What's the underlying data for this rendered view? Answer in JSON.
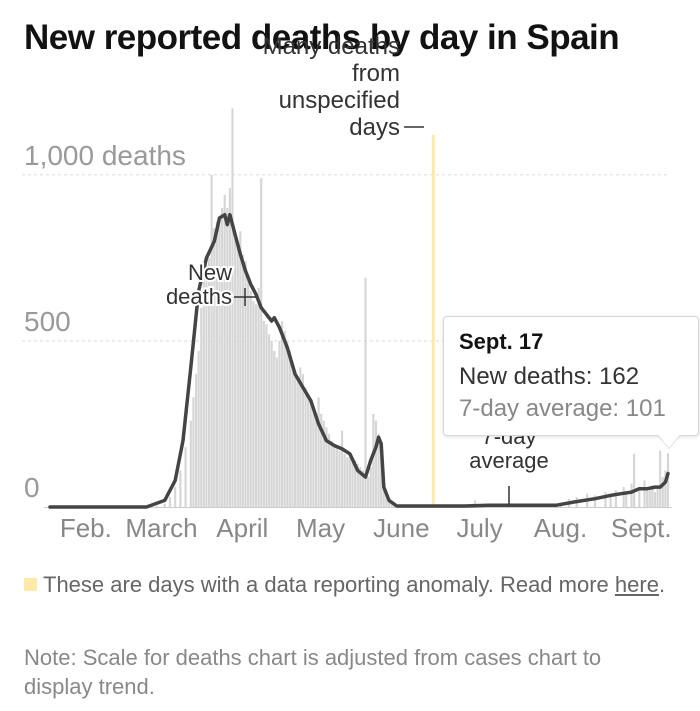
{
  "title": "New reported deaths by day in Spain",
  "chart_data": {
    "type": "bar",
    "title": "New reported deaths by day in Spain",
    "x_dates": [
      "2020-01-24",
      "2020-09-17"
    ],
    "months": [
      "Feb.",
      "March",
      "April",
      "May",
      "June",
      "July",
      "Aug.",
      "Sept."
    ],
    "ylim": [
      0,
      1150
    ],
    "yticks": [
      0,
      500,
      1000
    ],
    "ytick_labels": [
      "0",
      "500",
      "1,000 deaths"
    ],
    "grid": true,
    "anomaly_date": "2020-06-19",
    "series": [
      {
        "name": "New deaths",
        "type": "bar",
        "points": [
          [
            "2020-03-05",
            3
          ],
          [
            "2020-03-08",
            10
          ],
          [
            "2020-03-10",
            30
          ],
          [
            "2020-03-12",
            60
          ],
          [
            "2020-03-14",
            110
          ],
          [
            "2020-03-16",
            180
          ],
          [
            "2020-03-18",
            260
          ],
          [
            "2020-03-19",
            330
          ],
          [
            "2020-03-20",
            400
          ],
          [
            "2020-03-21",
            470
          ],
          [
            "2020-03-22",
            600
          ],
          [
            "2020-03-23",
            690
          ],
          [
            "2020-03-24",
            730
          ],
          [
            "2020-03-25",
            750
          ],
          [
            "2020-03-26",
            1000
          ],
          [
            "2020-03-27",
            840
          ],
          [
            "2020-03-28",
            860
          ],
          [
            "2020-03-29",
            870
          ],
          [
            "2020-03-30",
            900
          ],
          [
            "2020-03-31",
            940
          ],
          [
            "2020-04-01",
            900
          ],
          [
            "2020-04-02",
            960
          ],
          [
            "2020-04-03",
            1200
          ],
          [
            "2020-04-04",
            810
          ],
          [
            "2020-04-05",
            790
          ],
          [
            "2020-04-06",
            830
          ],
          [
            "2020-04-07",
            760
          ],
          [
            "2020-04-08",
            740
          ],
          [
            "2020-04-09",
            700
          ],
          [
            "2020-04-10",
            650
          ],
          [
            "2020-04-11",
            620
          ],
          [
            "2020-04-12",
            610
          ],
          [
            "2020-04-13",
            660
          ],
          [
            "2020-04-14",
            990
          ],
          [
            "2020-04-15",
            560
          ],
          [
            "2020-04-16",
            550
          ],
          [
            "2020-04-17",
            520
          ],
          [
            "2020-04-18",
            500
          ],
          [
            "2020-04-19",
            470
          ],
          [
            "2020-04-20",
            450
          ],
          [
            "2020-04-21",
            500
          ],
          [
            "2020-04-22",
            560
          ],
          [
            "2020-04-23",
            530
          ],
          [
            "2020-04-24",
            500
          ],
          [
            "2020-04-25",
            470
          ],
          [
            "2020-04-26",
            440
          ],
          [
            "2020-04-27",
            400
          ],
          [
            "2020-04-28",
            380
          ],
          [
            "2020-04-29",
            420
          ],
          [
            "2020-04-30",
            400
          ],
          [
            "2020-05-01",
            360
          ],
          [
            "2020-05-02",
            340
          ],
          [
            "2020-05-03",
            320
          ],
          [
            "2020-05-04",
            300
          ],
          [
            "2020-05-05",
            280
          ],
          [
            "2020-05-06",
            330
          ],
          [
            "2020-05-07",
            280
          ],
          [
            "2020-05-08",
            260
          ],
          [
            "2020-05-09",
            240
          ],
          [
            "2020-05-10",
            220
          ],
          [
            "2020-05-11",
            200
          ],
          [
            "2020-05-12",
            190
          ],
          [
            "2020-05-13",
            180
          ],
          [
            "2020-05-14",
            170
          ],
          [
            "2020-05-15",
            230
          ],
          [
            "2020-05-16",
            160
          ],
          [
            "2020-05-17",
            150
          ],
          [
            "2020-05-18",
            150
          ],
          [
            "2020-05-19",
            145
          ],
          [
            "2020-05-20",
            140
          ],
          [
            "2020-05-21",
            130
          ],
          [
            "2020-05-22",
            120
          ],
          [
            "2020-05-23",
            110
          ],
          [
            "2020-05-24",
            690
          ],
          [
            "2020-05-25",
            90
          ],
          [
            "2020-05-26",
            120
          ],
          [
            "2020-05-27",
            280
          ],
          [
            "2020-05-28",
            260
          ],
          [
            "2020-05-29",
            220
          ],
          [
            "2020-05-30",
            160
          ],
          [
            "2020-05-31",
            60
          ],
          [
            "2020-06-01",
            40
          ],
          [
            "2020-06-02",
            20
          ],
          [
            "2020-06-03",
            10
          ],
          [
            "2020-06-04",
            5
          ],
          [
            "2020-06-10",
            3
          ],
          [
            "2020-06-20",
            2
          ],
          [
            "2020-07-01",
            4
          ],
          [
            "2020-07-05",
            20
          ],
          [
            "2020-07-12",
            10
          ],
          [
            "2020-07-20",
            5
          ],
          [
            "2020-07-27",
            4
          ],
          [
            "2020-08-03",
            5
          ],
          [
            "2020-08-07",
            10
          ],
          [
            "2020-08-10",
            25
          ],
          [
            "2020-08-13",
            30
          ],
          [
            "2020-08-17",
            40
          ],
          [
            "2020-08-20",
            35
          ],
          [
            "2020-08-24",
            45
          ],
          [
            "2020-08-26",
            30
          ],
          [
            "2020-08-28",
            50
          ],
          [
            "2020-08-31",
            60
          ],
          [
            "2020-09-01",
            40
          ],
          [
            "2020-09-03",
            70
          ],
          [
            "2020-09-04",
            160
          ],
          [
            "2020-09-06",
            60
          ],
          [
            "2020-09-08",
            80
          ],
          [
            "2020-09-09",
            60
          ],
          [
            "2020-09-10",
            50
          ],
          [
            "2020-09-11",
            65
          ],
          [
            "2020-09-12",
            45
          ],
          [
            "2020-09-13",
            55
          ],
          [
            "2020-09-14",
            170
          ],
          [
            "2020-09-15",
            90
          ],
          [
            "2020-09-16",
            110
          ],
          [
            "2020-09-17",
            162
          ]
        ]
      },
      {
        "name": "7-day average",
        "type": "line",
        "points": [
          [
            "2020-01-24",
            0
          ],
          [
            "2020-03-01",
            0
          ],
          [
            "2020-03-08",
            20
          ],
          [
            "2020-03-12",
            80
          ],
          [
            "2020-03-15",
            200
          ],
          [
            "2020-03-18",
            420
          ],
          [
            "2020-03-21",
            650
          ],
          [
            "2020-03-24",
            750
          ],
          [
            "2020-03-27",
            800
          ],
          [
            "2020-03-29",
            870
          ],
          [
            "2020-03-31",
            880
          ],
          [
            "2020-04-01",
            850
          ],
          [
            "2020-04-02",
            880
          ],
          [
            "2020-04-04",
            820
          ],
          [
            "2020-04-06",
            760
          ],
          [
            "2020-04-08",
            710
          ],
          [
            "2020-04-10",
            670
          ],
          [
            "2020-04-12",
            640
          ],
          [
            "2020-04-14",
            600
          ],
          [
            "2020-04-16",
            580
          ],
          [
            "2020-04-18",
            560
          ],
          [
            "2020-04-19",
            570
          ],
          [
            "2020-04-21",
            540
          ],
          [
            "2020-04-24",
            480
          ],
          [
            "2020-04-27",
            400
          ],
          [
            "2020-04-30",
            360
          ],
          [
            "2020-05-03",
            320
          ],
          [
            "2020-05-06",
            250
          ],
          [
            "2020-05-09",
            200
          ],
          [
            "2020-05-12",
            185
          ],
          [
            "2020-05-15",
            175
          ],
          [
            "2020-05-18",
            160
          ],
          [
            "2020-05-21",
            110
          ],
          [
            "2020-05-24",
            90
          ],
          [
            "2020-05-26",
            140
          ],
          [
            "2020-05-28",
            180
          ],
          [
            "2020-05-29",
            210
          ],
          [
            "2020-05-30",
            190
          ],
          [
            "2020-05-31",
            60
          ],
          [
            "2020-06-02",
            20
          ],
          [
            "2020-06-05",
            3
          ],
          [
            "2020-07-01",
            3
          ],
          [
            "2020-07-10",
            5
          ],
          [
            "2020-08-05",
            5
          ],
          [
            "2020-08-12",
            15
          ],
          [
            "2020-08-20",
            25
          ],
          [
            "2020-08-26",
            35
          ],
          [
            "2020-08-30",
            40
          ],
          [
            "2020-09-03",
            45
          ],
          [
            "2020-09-06",
            55
          ],
          [
            "2020-09-09",
            55
          ],
          [
            "2020-09-12",
            60
          ],
          [
            "2020-09-14",
            60
          ],
          [
            "2020-09-16",
            75
          ],
          [
            "2020-09-17",
            101
          ]
        ]
      }
    ],
    "annotations": [
      {
        "name": "new-deaths-label",
        "lines": [
          "New",
          "deaths"
        ],
        "date": "2020-04-01",
        "value": 500
      },
      {
        "name": "unspecified-days-label",
        "lines": [
          "Many deaths",
          "from",
          "unspecified",
          "days"
        ],
        "date": "2020-06-19",
        "value": 1000
      },
      {
        "name": "average-label",
        "lines": [
          "7-day",
          "average"
        ],
        "date": "2020-07-21",
        "value": 10
      }
    ]
  },
  "tooltip": {
    "date": "Sept. 17",
    "new_deaths": "New deaths: 162",
    "average": "7-day average: 101"
  },
  "legend": {
    "text": "These are days with a data reporting anomaly. Read more ",
    "link": "here",
    "period": "."
  },
  "note": "Note: Scale for deaths chart is adjusted from cases chart to display trend.",
  "colors": {
    "bars": "#d6d6d6",
    "line": "#444444",
    "anomaly": "#fde9a8",
    "grid": "#dddddd",
    "axis_text": "#999999"
  }
}
